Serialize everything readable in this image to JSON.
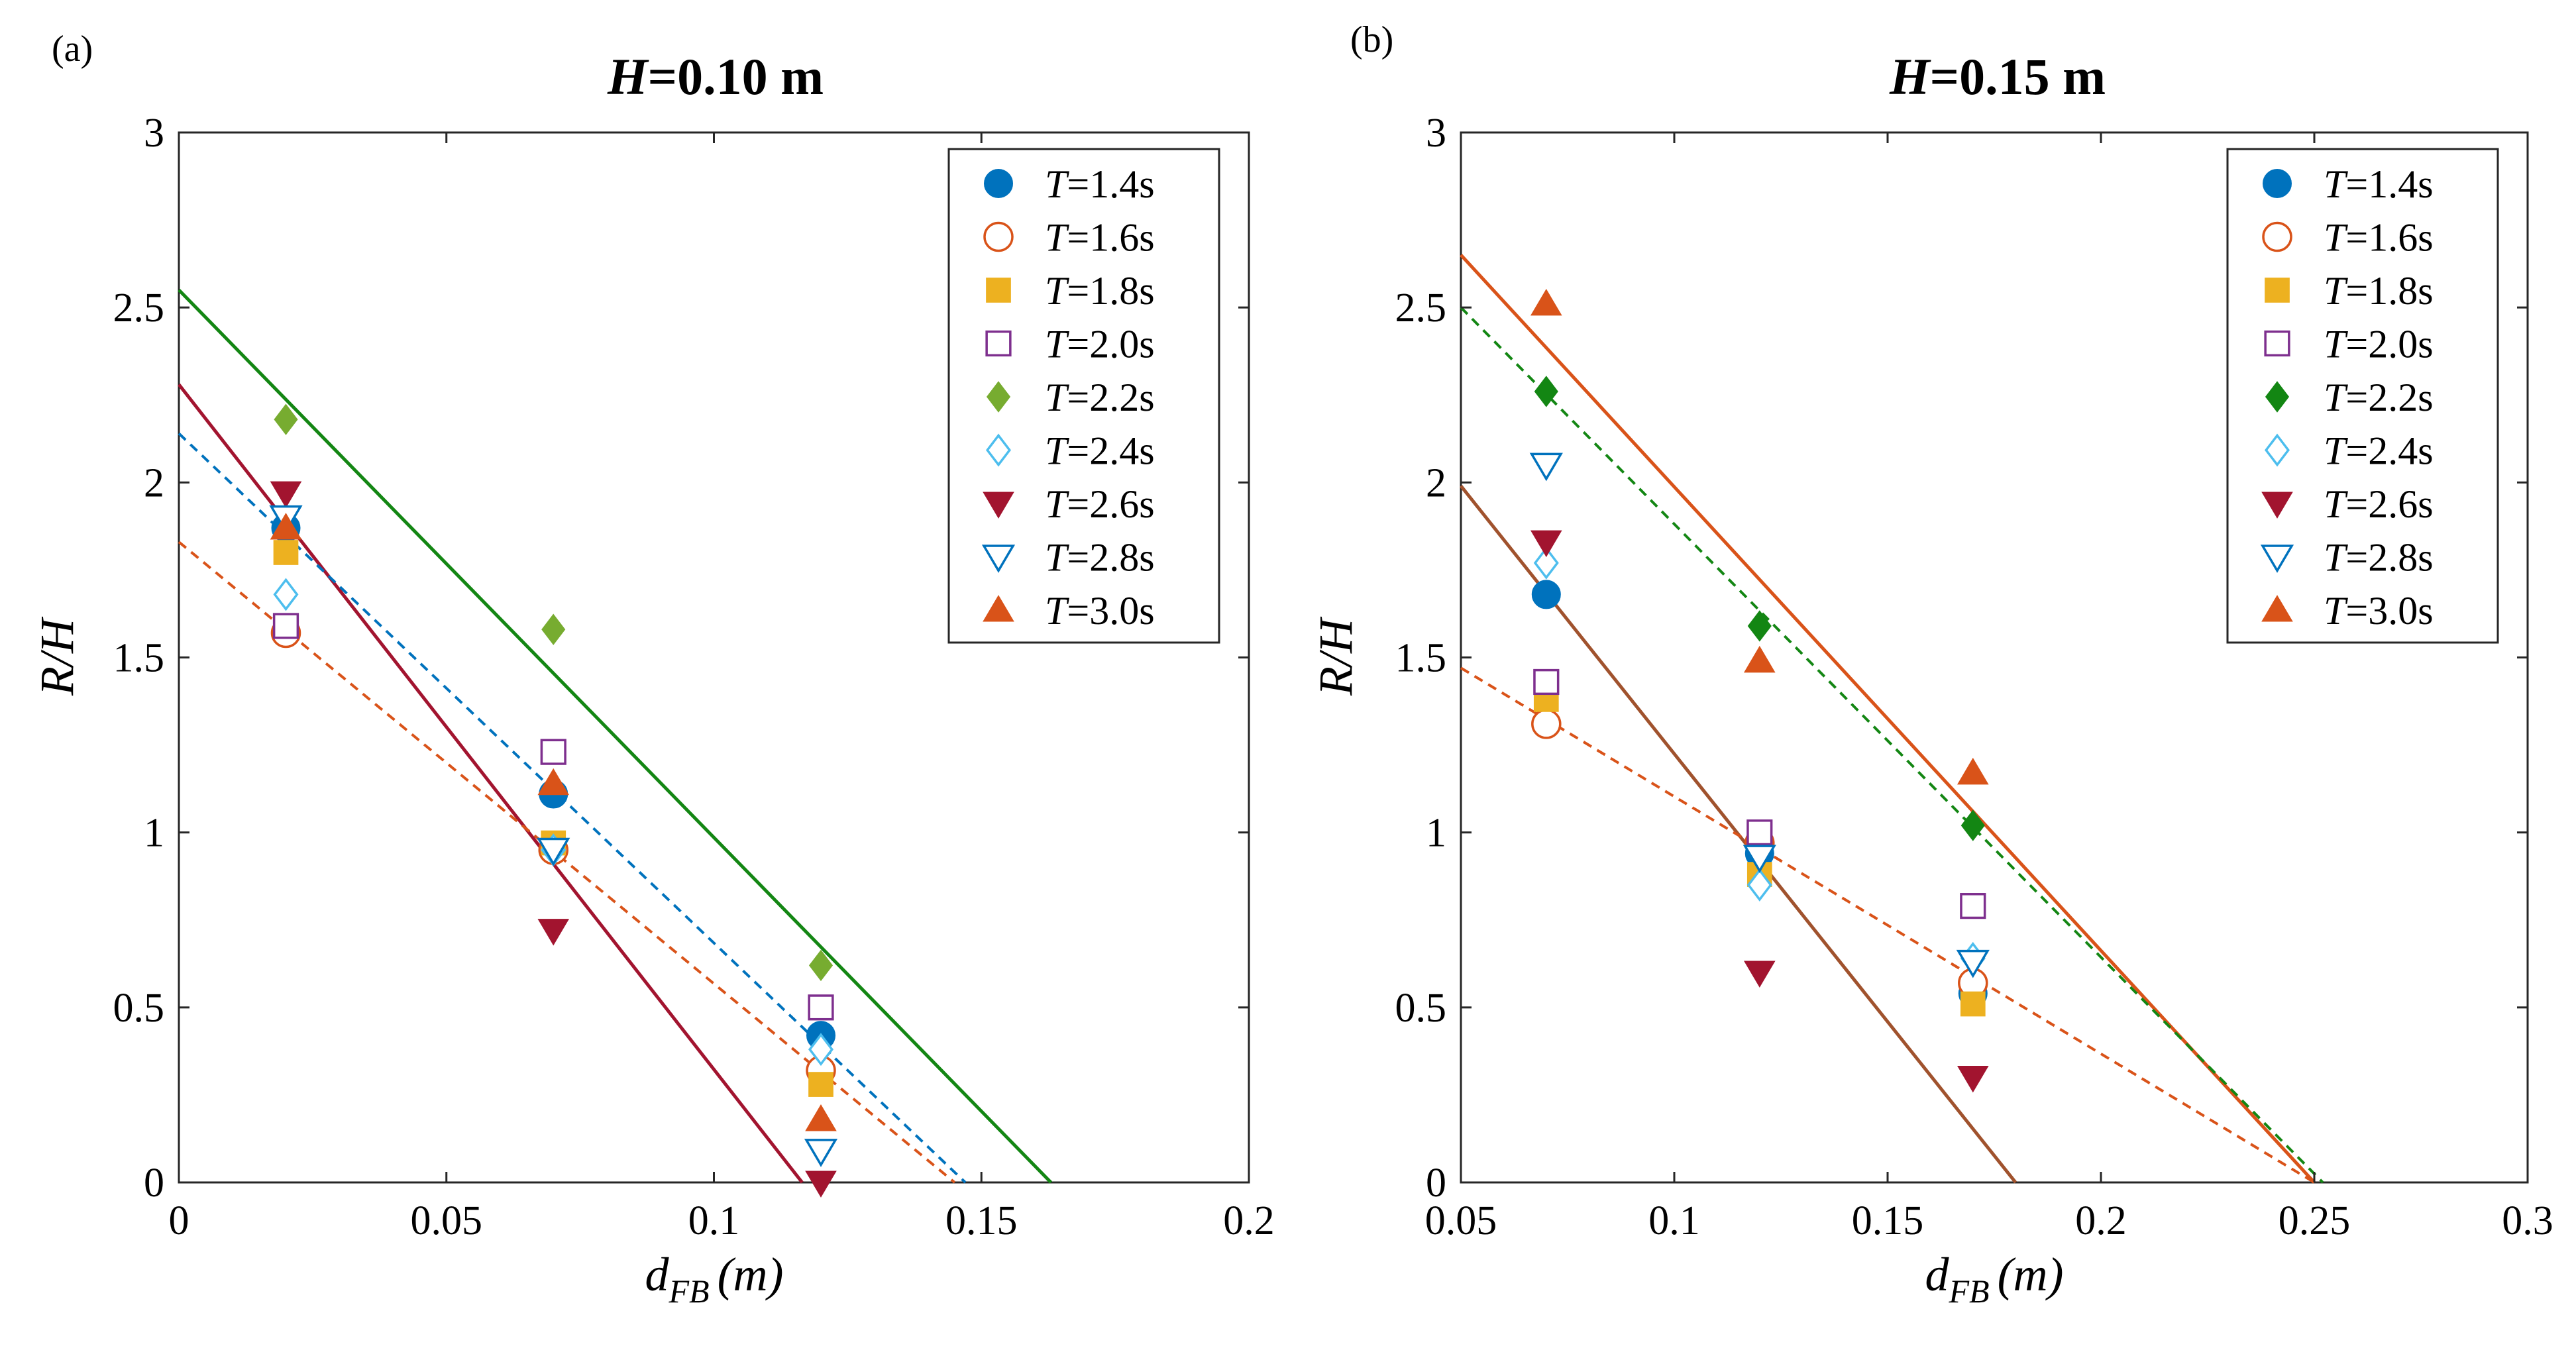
{
  "chart_data": [
    {
      "type": "scatter",
      "panel_label": "(a)",
      "title_var": "H",
      "title_rest": "=0.10 m",
      "xlabel_main": "d",
      "xlabel_sub": "FB",
      "xlabel_unit": "(m)",
      "ylabel": "R/H",
      "xlim": [
        0,
        0.2
      ],
      "ylim": [
        0,
        3
      ],
      "xticks": [
        0,
        0.05,
        0.1,
        0.15,
        0.2
      ],
      "xtick_labels": [
        "0",
        "0.05",
        "0.1",
        "0.15",
        "0.2"
      ],
      "yticks": [
        0,
        0.5,
        1,
        1.5,
        2,
        2.5,
        3
      ],
      "ytick_labels": [
        "0",
        "0.5",
        "1",
        "1.5",
        "2",
        "2.5",
        "3"
      ],
      "legend_position": "top-right",
      "series": [
        {
          "name_var": "T",
          "name_rest": "=1.4s",
          "marker": "circle",
          "filled": true,
          "color": "#0072BD",
          "x": [
            0.02,
            0.07,
            0.12
          ],
          "y": [
            1.87,
            1.11,
            0.42
          ]
        },
        {
          "name_var": "T",
          "name_rest": "=1.6s",
          "marker": "circle",
          "filled": false,
          "color": "#D95319",
          "x": [
            0.02,
            0.07,
            0.12
          ],
          "y": [
            1.57,
            0.95,
            0.32
          ]
        },
        {
          "name_var": "T",
          "name_rest": "=1.8s",
          "marker": "square",
          "filled": true,
          "color": "#EDB120",
          "x": [
            0.02,
            0.07,
            0.12
          ],
          "y": [
            1.8,
            0.97,
            0.28
          ]
        },
        {
          "name_var": "T",
          "name_rest": "=2.0s",
          "marker": "square",
          "filled": false,
          "color": "#7E2F8E",
          "x": [
            0.02,
            0.07,
            0.12
          ],
          "y": [
            1.59,
            1.23,
            0.5
          ]
        },
        {
          "name_var": "T",
          "name_rest": "=2.2s",
          "marker": "diamond",
          "filled": true,
          "color": "#77AC30",
          "x": [
            0.02,
            0.07,
            0.12
          ],
          "y": [
            2.18,
            1.58,
            0.62
          ]
        },
        {
          "name_var": "T",
          "name_rest": "=2.4s",
          "marker": "diamond",
          "filled": false,
          "color": "#4DBEEE",
          "x": [
            0.02,
            0.07,
            0.12
          ],
          "y": [
            1.68,
            0.95,
            0.38
          ]
        },
        {
          "name_var": "T",
          "name_rest": "=2.6s",
          "marker": "triangle-down",
          "filled": true,
          "color": "#A2142F",
          "x": [
            0.02,
            0.07,
            0.12
          ],
          "y": [
            1.97,
            0.72,
            0.0
          ]
        },
        {
          "name_var": "T",
          "name_rest": "=2.8s",
          "marker": "triangle-down",
          "filled": false,
          "color": "#0072BD",
          "x": [
            0.02,
            0.07,
            0.12
          ],
          "y": [
            1.9,
            0.95,
            0.09
          ]
        },
        {
          "name_var": "T",
          "name_rest": "=3.0s",
          "marker": "triangle-up",
          "filled": true,
          "color": "#D95319",
          "x": [
            0.02,
            0.07,
            0.12
          ],
          "y": [
            1.87,
            1.14,
            0.18
          ]
        }
      ],
      "fit_lines": [
        {
          "color": "#138613",
          "dashed": false,
          "x": [
            0,
            0.163
          ],
          "y": [
            2.55,
            0
          ]
        },
        {
          "color": "#A2142F",
          "dashed": false,
          "x": [
            0,
            0.1165
          ],
          "y": [
            2.28,
            0
          ]
        },
        {
          "color": "#0072BD",
          "dashed": true,
          "x": [
            0,
            0.147
          ],
          "y": [
            2.14,
            0
          ]
        },
        {
          "color": "#D95319",
          "dashed": true,
          "x": [
            0,
            0.145
          ],
          "y": [
            1.83,
            0
          ]
        }
      ]
    },
    {
      "type": "scatter",
      "panel_label": "(b)",
      "title_var": "H",
      "title_rest": "=0.15 m",
      "xlabel_main": "d",
      "xlabel_sub": "FB",
      "xlabel_unit": "(m)",
      "ylabel": "R/H",
      "xlim": [
        0.05,
        0.3
      ],
      "ylim": [
        0,
        3
      ],
      "xticks": [
        0.05,
        0.1,
        0.15,
        0.2,
        0.25,
        0.3
      ],
      "xtick_labels": [
        "0.05",
        "0.1",
        "0.15",
        "0.2",
        "0.25",
        "0.3"
      ],
      "yticks": [
        0,
        0.5,
        1,
        1.5,
        2,
        2.5,
        3
      ],
      "ytick_labels": [
        "0",
        "0.5",
        "1",
        "1.5",
        "2",
        "2.5",
        "3"
      ],
      "legend_position": "top-right",
      "series": [
        {
          "name_var": "T",
          "name_rest": "=1.4s",
          "marker": "circle",
          "filled": true,
          "color": "#0072BD",
          "x": [
            0.07,
            0.12,
            0.17
          ],
          "y": [
            1.68,
            0.94,
            0.54
          ]
        },
        {
          "name_var": "T",
          "name_rest": "=1.6s",
          "marker": "circle",
          "filled": false,
          "color": "#D95319",
          "x": [
            0.07,
            0.12,
            0.17
          ],
          "y": [
            1.31,
            0.97,
            0.57
          ]
        },
        {
          "name_var": "T",
          "name_rest": "=1.8s",
          "marker": "square",
          "filled": true,
          "color": "#EDB120",
          "x": [
            0.07,
            0.12,
            0.17
          ],
          "y": [
            1.38,
            0.88,
            0.51
          ]
        },
        {
          "name_var": "T",
          "name_rest": "=2.0s",
          "marker": "square",
          "filled": false,
          "color": "#7E2F8E",
          "x": [
            0.07,
            0.12,
            0.17
          ],
          "y": [
            1.43,
            1.0,
            0.79
          ]
        },
        {
          "name_var": "T",
          "name_rest": "=2.2s",
          "marker": "diamond",
          "filled": true,
          "color": "#138613",
          "x": [
            0.07,
            0.12,
            0.17
          ],
          "y": [
            2.26,
            1.59,
            1.02
          ]
        },
        {
          "name_var": "T",
          "name_rest": "=2.4s",
          "marker": "diamond",
          "filled": false,
          "color": "#4DBEEE",
          "x": [
            0.07,
            0.12,
            0.17
          ],
          "y": [
            1.77,
            0.85,
            0.64
          ]
        },
        {
          "name_var": "T",
          "name_rest": "=2.6s",
          "marker": "triangle-down",
          "filled": true,
          "color": "#A2142F",
          "x": [
            0.07,
            0.12,
            0.17
          ],
          "y": [
            1.83,
            0.6,
            0.3
          ]
        },
        {
          "name_var": "T",
          "name_rest": "=2.8s",
          "marker": "triangle-down",
          "filled": false,
          "color": "#0072BD",
          "x": [
            0.07,
            0.12,
            0.17
          ],
          "y": [
            2.05,
            0.93,
            0.63
          ]
        },
        {
          "name_var": "T",
          "name_rest": "=3.0s",
          "marker": "triangle-up",
          "filled": true,
          "color": "#D95319",
          "x": [
            0.07,
            0.12,
            0.17
          ],
          "y": [
            2.51,
            1.49,
            1.17
          ]
        }
      ],
      "fit_lines": [
        {
          "color": "#D95319",
          "dashed": false,
          "x": [
            0.05,
            0.25
          ],
          "y": [
            2.65,
            0
          ]
        },
        {
          "color": "#138613",
          "dashed": true,
          "x": [
            0.05,
            0.252
          ],
          "y": [
            2.5,
            0
          ]
        },
        {
          "color": "#A0522D",
          "dashed": false,
          "x": [
            0.05,
            0.18
          ],
          "y": [
            1.99,
            0
          ]
        },
        {
          "color": "#D95319",
          "dashed": true,
          "x": [
            0.05,
            0.25
          ],
          "y": [
            1.47,
            0
          ]
        }
      ]
    }
  ]
}
